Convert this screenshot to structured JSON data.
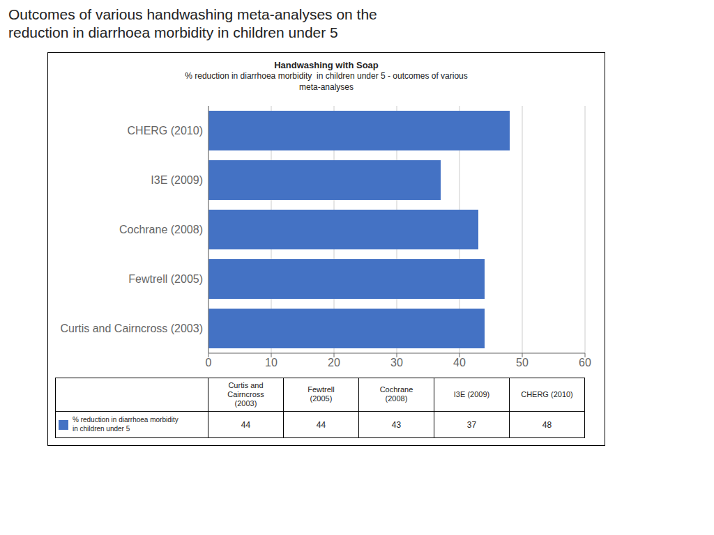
{
  "chart_data": {
    "type": "bar",
    "orientation": "horizontal",
    "title": "Outcomes of various handwashing meta-analyses on the\nreduction in diarrhoea morbidity in children under 5",
    "subtitle": [
      "Handwashing with Soap",
      "% reduction in diarrhoea morbidity  in children under 5 - outcomes of various\nmeta-analyses"
    ],
    "categories": [
      "Curtis and Cairncross (2003)",
      "Fewtrell (2005)",
      "Cochrane (2008)",
      "I3E (2009)",
      "CHERG (2010)"
    ],
    "series": [
      {
        "name": "% reduction in diarrhoea morbidity\nin children under 5",
        "color": "#4472C4",
        "values": [
          44,
          44,
          43,
          37,
          48
        ]
      }
    ],
    "xlim": [
      0,
      60
    ],
    "xticks": [
      0,
      10,
      20,
      30,
      40,
      50,
      60
    ],
    "grid": true,
    "table_headers": [
      "Curtis and\nCairncross\n(2003)",
      "Fewtrell\n(2005)",
      "Cochrane\n(2008)",
      "I3E (2009)",
      "CHERG (2010)"
    ],
    "table_values": [
      44,
      44,
      43,
      37,
      48
    ]
  }
}
